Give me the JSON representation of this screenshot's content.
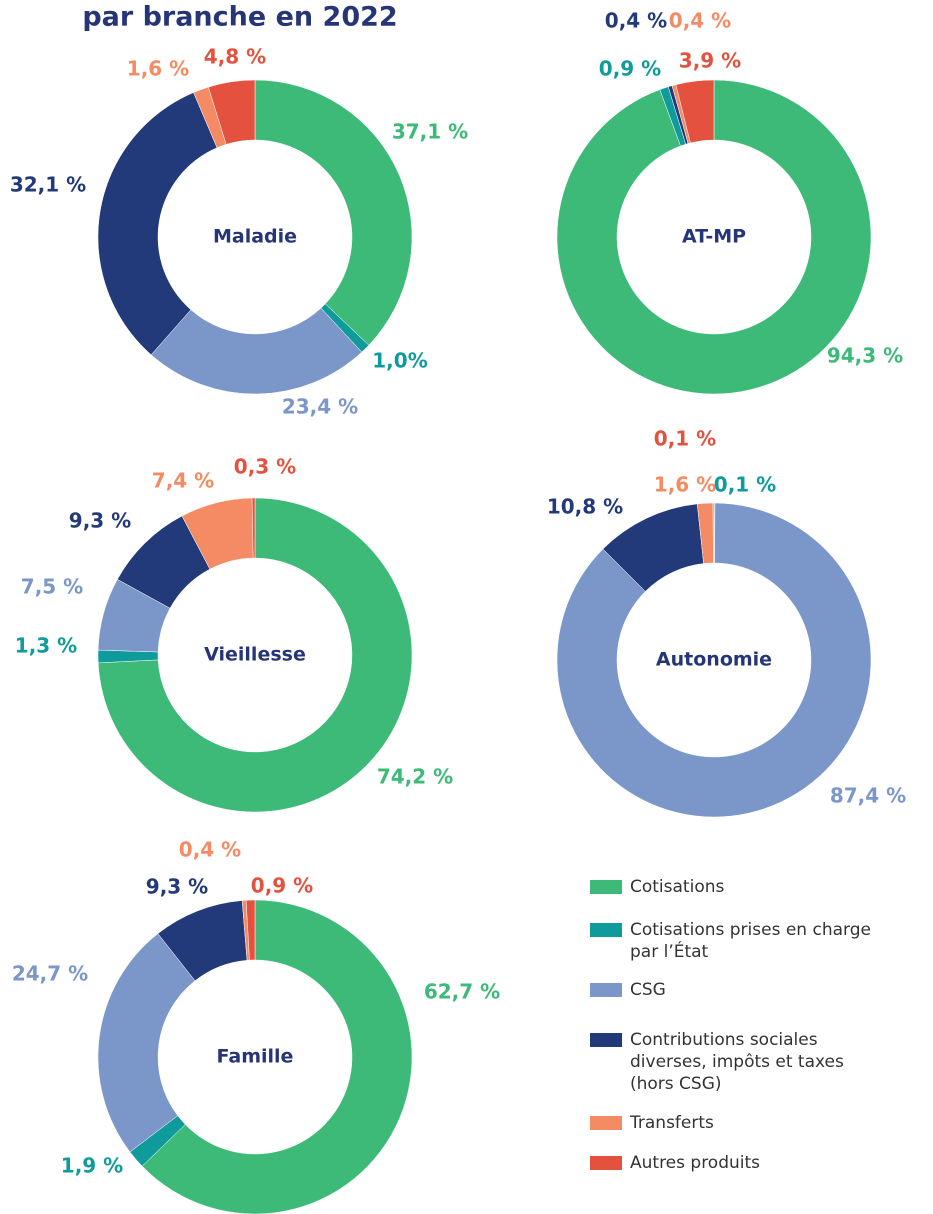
{
  "title": "par branche en 2022",
  "chart_data": [
    {
      "type": "donut",
      "title": "Maladie",
      "values": [
        37.1,
        1.0,
        23.4,
        32.1,
        1.6,
        4.8
      ],
      "value_labels": [
        "37,1 %",
        "1,0%",
        "23,4 %",
        "32,1 %",
        "1,6 %",
        "4,8 %"
      ],
      "colors": [
        "#3dba78",
        "#0f9b9b",
        "#7b96c8",
        "#233a7a",
        "#f58b64",
        "#e4523f"
      ]
    },
    {
      "type": "donut",
      "title": "AT-MP",
      "values": [
        94.3,
        0.9,
        0.4,
        0.4,
        3.9
      ],
      "value_labels": [
        "94,3 %",
        "0,9 %",
        "0,4 %",
        "0,4 %",
        "3,9 %"
      ],
      "colors": [
        "#3dba78",
        "#0f9b9b",
        "#233a7a",
        "#f58b64",
        "#e4523f"
      ]
    },
    {
      "type": "donut",
      "title": "Vieillesse",
      "values": [
        74.2,
        1.3,
        7.5,
        9.3,
        7.4,
        0.3
      ],
      "value_labels": [
        "74,2 %",
        "1,3 %",
        "7,5 %",
        "9,3 %",
        "7,4 %",
        "0,3 %"
      ],
      "colors": [
        "#3dba78",
        "#0f9b9b",
        "#7b96c8",
        "#233a7a",
        "#f58b64",
        "#e4523f"
      ]
    },
    {
      "type": "donut",
      "title": "Autonomie",
      "values": [
        0.1,
        87.4,
        10.8,
        1.6,
        0.1
      ],
      "value_labels": [
        "0,1 %",
        "87,4 %",
        "10,8 %",
        "1,6 %",
        "0,1 %"
      ],
      "colors": [
        "#0f9b9b",
        "#7b96c8",
        "#233a7a",
        "#f58b64",
        "#e4523f"
      ]
    },
    {
      "type": "donut",
      "title": "Famille",
      "values": [
        62.7,
        1.9,
        24.7,
        9.3,
        0.4,
        0.9
      ],
      "value_labels": [
        "62,7 %",
        "1,9 %",
        "24,7 %",
        "9,3 %",
        "0,4 %",
        "0,9 %"
      ],
      "colors": [
        "#3dba78",
        "#0f9b9b",
        "#7b96c8",
        "#233a7a",
        "#f58b64",
        "#e4523f"
      ]
    }
  ],
  "legend": {
    "labels": [
      [
        "Cotisations"
      ],
      [
        "Cotisations prises en charge",
        "par l’État"
      ],
      [
        "CSG"
      ],
      [
        "Contributions sociales",
        "diverses, impôts et taxes",
        "(hors CSG)"
      ],
      [
        "Transferts"
      ],
      [
        "Autres produits"
      ]
    ],
    "colors": [
      "#3dba78",
      "#0f9b9b",
      "#7b96c8",
      "#233a7a",
      "#f58b64",
      "#e4523f"
    ]
  }
}
